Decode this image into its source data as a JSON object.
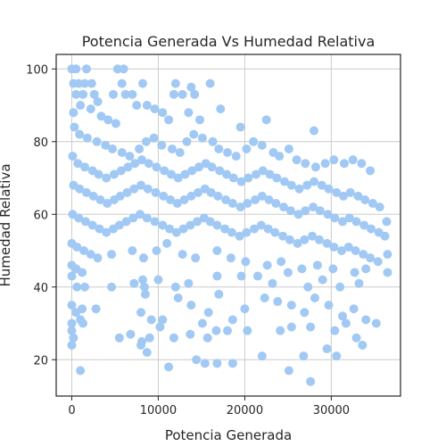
{
  "chart_data": {
    "type": "scatter",
    "title": "Potencia Generada Vs Humedad Relativa",
    "xlabel": "Potencia Generada",
    "ylabel": "Humedad Relativa",
    "xlim": [
      -1800,
      38000
    ],
    "ylim": [
      10,
      104
    ],
    "xticks": [
      0,
      10000,
      20000,
      30000
    ],
    "yticks": [
      20,
      40,
      60,
      80,
      100
    ],
    "grid": true,
    "legend": "none",
    "colors": {
      "point": "#a1c9f4",
      "grid": "#cccccc",
      "axis": "#262626",
      "text": "#262626"
    },
    "series": [
      {
        "points": [
          [
            0,
            100
          ],
          [
            500,
            100
          ],
          [
            1700,
            100
          ],
          [
            5300,
            100
          ],
          [
            6000,
            100
          ],
          [
            200,
            96
          ],
          [
            800,
            96
          ],
          [
            1500,
            96
          ],
          [
            2300,
            96
          ],
          [
            5800,
            96
          ],
          [
            8200,
            96
          ],
          [
            12000,
            96
          ],
          [
            13800,
            95
          ],
          [
            16000,
            96
          ],
          [
            500,
            93
          ],
          [
            1300,
            93
          ],
          [
            2600,
            93
          ],
          [
            4800,
            93
          ],
          [
            6200,
            93
          ],
          [
            7000,
            93
          ],
          [
            11800,
            93
          ],
          [
            12800,
            93
          ],
          [
            14200,
            93
          ],
          [
            3000,
            91
          ],
          [
            7500,
            90
          ],
          [
            8700,
            90
          ],
          [
            9600,
            89
          ],
          [
            10500,
            88
          ],
          [
            11200,
            86
          ],
          [
            13500,
            88
          ],
          [
            14800,
            86
          ],
          [
            17200,
            89
          ],
          [
            19500,
            84
          ],
          [
            22500,
            86
          ],
          [
            28000,
            83
          ],
          [
            200,
            88
          ],
          [
            1000,
            90
          ],
          [
            2200,
            89
          ],
          [
            3400,
            87
          ],
          [
            4200,
            86
          ],
          [
            5100,
            85
          ],
          [
            300,
            84
          ],
          [
            900,
            82
          ],
          [
            1800,
            81
          ],
          [
            2900,
            80
          ],
          [
            3900,
            79
          ],
          [
            4700,
            78
          ],
          [
            5800,
            77
          ],
          [
            6700,
            76
          ],
          [
            7800,
            78
          ],
          [
            8600,
            80
          ],
          [
            9500,
            81
          ],
          [
            10400,
            79
          ],
          [
            11600,
            78
          ],
          [
            12500,
            77
          ],
          [
            13300,
            80
          ],
          [
            14100,
            82
          ],
          [
            15100,
            81
          ],
          [
            16300,
            80
          ],
          [
            17000,
            78
          ],
          [
            18000,
            77
          ],
          [
            19000,
            76
          ],
          [
            20200,
            78
          ],
          [
            21000,
            80
          ],
          [
            22000,
            79
          ],
          [
            23300,
            77
          ],
          [
            24000,
            76
          ],
          [
            25100,
            78
          ],
          [
            26000,
            75
          ],
          [
            27000,
            74
          ],
          [
            28200,
            73
          ],
          [
            29300,
            74
          ],
          [
            30300,
            75
          ],
          [
            31500,
            74
          ],
          [
            32500,
            75
          ],
          [
            33500,
            74
          ],
          [
            34500,
            72
          ],
          [
            100,
            76
          ],
          [
            700,
            74
          ],
          [
            1500,
            73
          ],
          [
            2400,
            72
          ],
          [
            3100,
            71
          ],
          [
            4000,
            70
          ],
          [
            4900,
            71
          ],
          [
            5700,
            72
          ],
          [
            6500,
            73
          ],
          [
            7300,
            74
          ],
          [
            8100,
            75
          ],
          [
            8900,
            74
          ],
          [
            9800,
            73
          ],
          [
            10700,
            72
          ],
          [
            11500,
            71
          ],
          [
            12300,
            70
          ],
          [
            13100,
            71
          ],
          [
            13900,
            72
          ],
          [
            14700,
            73
          ],
          [
            15500,
            74
          ],
          [
            16200,
            73
          ],
          [
            17100,
            72
          ],
          [
            17900,
            71
          ],
          [
            18700,
            70
          ],
          [
            19600,
            69
          ],
          [
            20400,
            70
          ],
          [
            21300,
            71
          ],
          [
            22100,
            72
          ],
          [
            22900,
            71
          ],
          [
            23700,
            70
          ],
          [
            24600,
            69
          ],
          [
            25400,
            68
          ],
          [
            26300,
            67
          ],
          [
            27200,
            68
          ],
          [
            28000,
            69
          ],
          [
            28900,
            68
          ],
          [
            29700,
            67
          ],
          [
            30600,
            66
          ],
          [
            31400,
            65
          ],
          [
            32200,
            66
          ],
          [
            33100,
            65
          ],
          [
            33900,
            64
          ],
          [
            34800,
            63
          ],
          [
            35600,
            62
          ],
          [
            200,
            68
          ],
          [
            900,
            67
          ],
          [
            1700,
            66
          ],
          [
            2500,
            65
          ],
          [
            3300,
            64
          ],
          [
            4100,
            63
          ],
          [
            4900,
            64
          ],
          [
            5600,
            65
          ],
          [
            6400,
            66
          ],
          [
            7200,
            67
          ],
          [
            8000,
            68
          ],
          [
            8800,
            67
          ],
          [
            9700,
            66
          ],
          [
            10600,
            65
          ],
          [
            11400,
            64
          ],
          [
            12200,
            63
          ],
          [
            13000,
            64
          ],
          [
            13800,
            65
          ],
          [
            14600,
            66
          ],
          [
            15400,
            67
          ],
          [
            16100,
            66
          ],
          [
            16900,
            65
          ],
          [
            17800,
            64
          ],
          [
            18600,
            63
          ],
          [
            19500,
            62
          ],
          [
            20300,
            63
          ],
          [
            21200,
            64
          ],
          [
            22000,
            65
          ],
          [
            22800,
            64
          ],
          [
            23600,
            63
          ],
          [
            24500,
            62
          ],
          [
            25300,
            61
          ],
          [
            26200,
            60
          ],
          [
            27000,
            61
          ],
          [
            27900,
            62
          ],
          [
            28700,
            61
          ],
          [
            29600,
            60
          ],
          [
            30400,
            59
          ],
          [
            31300,
            58
          ],
          [
            32100,
            59
          ],
          [
            32900,
            58
          ],
          [
            33800,
            57
          ],
          [
            34600,
            56
          ],
          [
            35500,
            55
          ],
          [
            36200,
            54
          ],
          [
            100,
            60
          ],
          [
            800,
            59
          ],
          [
            1600,
            58
          ],
          [
            2400,
            57
          ],
          [
            3200,
            56
          ],
          [
            4000,
            55
          ],
          [
            4800,
            56
          ],
          [
            5500,
            57
          ],
          [
            6300,
            58
          ],
          [
            7100,
            59
          ],
          [
            7900,
            60
          ],
          [
            8700,
            59
          ],
          [
            9600,
            58
          ],
          [
            10500,
            57
          ],
          [
            11300,
            56
          ],
          [
            12100,
            55
          ],
          [
            12900,
            56
          ],
          [
            13700,
            57
          ],
          [
            14500,
            58
          ],
          [
            15300,
            59
          ],
          [
            16000,
            58
          ],
          [
            16800,
            57
          ],
          [
            17700,
            56
          ],
          [
            18500,
            55
          ],
          [
            19400,
            54
          ],
          [
            20200,
            55
          ],
          [
            21100,
            56
          ],
          [
            21900,
            57
          ],
          [
            22700,
            56
          ],
          [
            23500,
            55
          ],
          [
            24400,
            54
          ],
          [
            25200,
            53
          ],
          [
            26100,
            52
          ],
          [
            26900,
            53
          ],
          [
            27800,
            54
          ],
          [
            28600,
            53
          ],
          [
            29500,
            52
          ],
          [
            30300,
            51
          ],
          [
            31200,
            50
          ],
          [
            32000,
            51
          ],
          [
            32800,
            50
          ],
          [
            33700,
            49
          ],
          [
            34500,
            48
          ],
          [
            35400,
            47
          ],
          [
            36500,
            49
          ],
          [
            36400,
            58
          ],
          [
            0,
            52
          ],
          [
            600,
            51
          ],
          [
            1400,
            50
          ],
          [
            2200,
            49
          ],
          [
            0,
            46
          ],
          [
            500,
            45
          ],
          [
            1200,
            44
          ],
          [
            3000,
            48
          ],
          [
            4600,
            49
          ],
          [
            7000,
            50
          ],
          [
            8300,
            48
          ],
          [
            9800,
            50
          ],
          [
            11000,
            52
          ],
          [
            12800,
            49
          ],
          [
            14300,
            48
          ],
          [
            16800,
            50
          ],
          [
            18400,
            48
          ],
          [
            20100,
            47
          ],
          [
            22600,
            46
          ],
          [
            24200,
            47
          ],
          [
            26600,
            45
          ],
          [
            28400,
            46
          ],
          [
            30200,
            45
          ],
          [
            32700,
            44
          ],
          [
            34000,
            45
          ],
          [
            0,
            43
          ],
          [
            600,
            40
          ],
          [
            1500,
            40
          ],
          [
            4600,
            40
          ],
          [
            7200,
            41
          ],
          [
            8200,
            42
          ],
          [
            8400,
            40
          ],
          [
            10000,
            42
          ],
          [
            12000,
            40
          ],
          [
            13500,
            41
          ],
          [
            16800,
            43
          ],
          [
            19600,
            43
          ],
          [
            21500,
            43
          ],
          [
            23200,
            41
          ],
          [
            25000,
            44
          ],
          [
            27300,
            40
          ],
          [
            29000,
            42
          ],
          [
            31000,
            40
          ],
          [
            33200,
            41
          ],
          [
            36500,
            44
          ],
          [
            0,
            35
          ],
          [
            500,
            33
          ],
          [
            1200,
            34
          ],
          [
            2800,
            34
          ],
          [
            8500,
            38
          ],
          [
            8000,
            33
          ],
          [
            9200,
            31
          ],
          [
            10500,
            31
          ],
          [
            12300,
            37
          ],
          [
            13800,
            35
          ],
          [
            15100,
            30
          ],
          [
            15800,
            33
          ],
          [
            17000,
            38
          ],
          [
            18600,
            31
          ],
          [
            20000,
            34
          ],
          [
            22300,
            37
          ],
          [
            23800,
            36
          ],
          [
            25400,
            35
          ],
          [
            26900,
            33
          ],
          [
            28100,
            37
          ],
          [
            29700,
            35
          ],
          [
            31300,
            32
          ],
          [
            32600,
            34
          ],
          [
            34000,
            31
          ],
          [
            35200,
            30
          ],
          [
            0,
            30
          ],
          [
            1000,
            31
          ],
          [
            0,
            28
          ],
          [
            200,
            26
          ],
          [
            1300,
            30
          ],
          [
            5500,
            26
          ],
          [
            6800,
            27
          ],
          [
            8100,
            25
          ],
          [
            9000,
            26
          ],
          [
            10200,
            29
          ],
          [
            11800,
            26
          ],
          [
            13700,
            27
          ],
          [
            15700,
            26
          ],
          [
            16700,
            28
          ],
          [
            18000,
            28
          ],
          [
            20300,
            28
          ],
          [
            24100,
            28
          ],
          [
            25400,
            29
          ],
          [
            27600,
            29
          ],
          [
            30400,
            28
          ],
          [
            31700,
            30
          ],
          [
            32900,
            26
          ],
          [
            33600,
            24
          ],
          [
            0,
            24
          ],
          [
            8000,
            24
          ],
          [
            8700,
            22
          ],
          [
            11200,
            18
          ],
          [
            14400,
            20
          ],
          [
            15400,
            19
          ],
          [
            16800,
            19
          ],
          [
            18600,
            19
          ],
          [
            22000,
            21
          ],
          [
            25100,
            17
          ],
          [
            26800,
            21
          ],
          [
            27600,
            14
          ],
          [
            29500,
            23
          ],
          [
            30600,
            21
          ],
          [
            1000,
            17
          ]
        ]
      }
    ]
  }
}
